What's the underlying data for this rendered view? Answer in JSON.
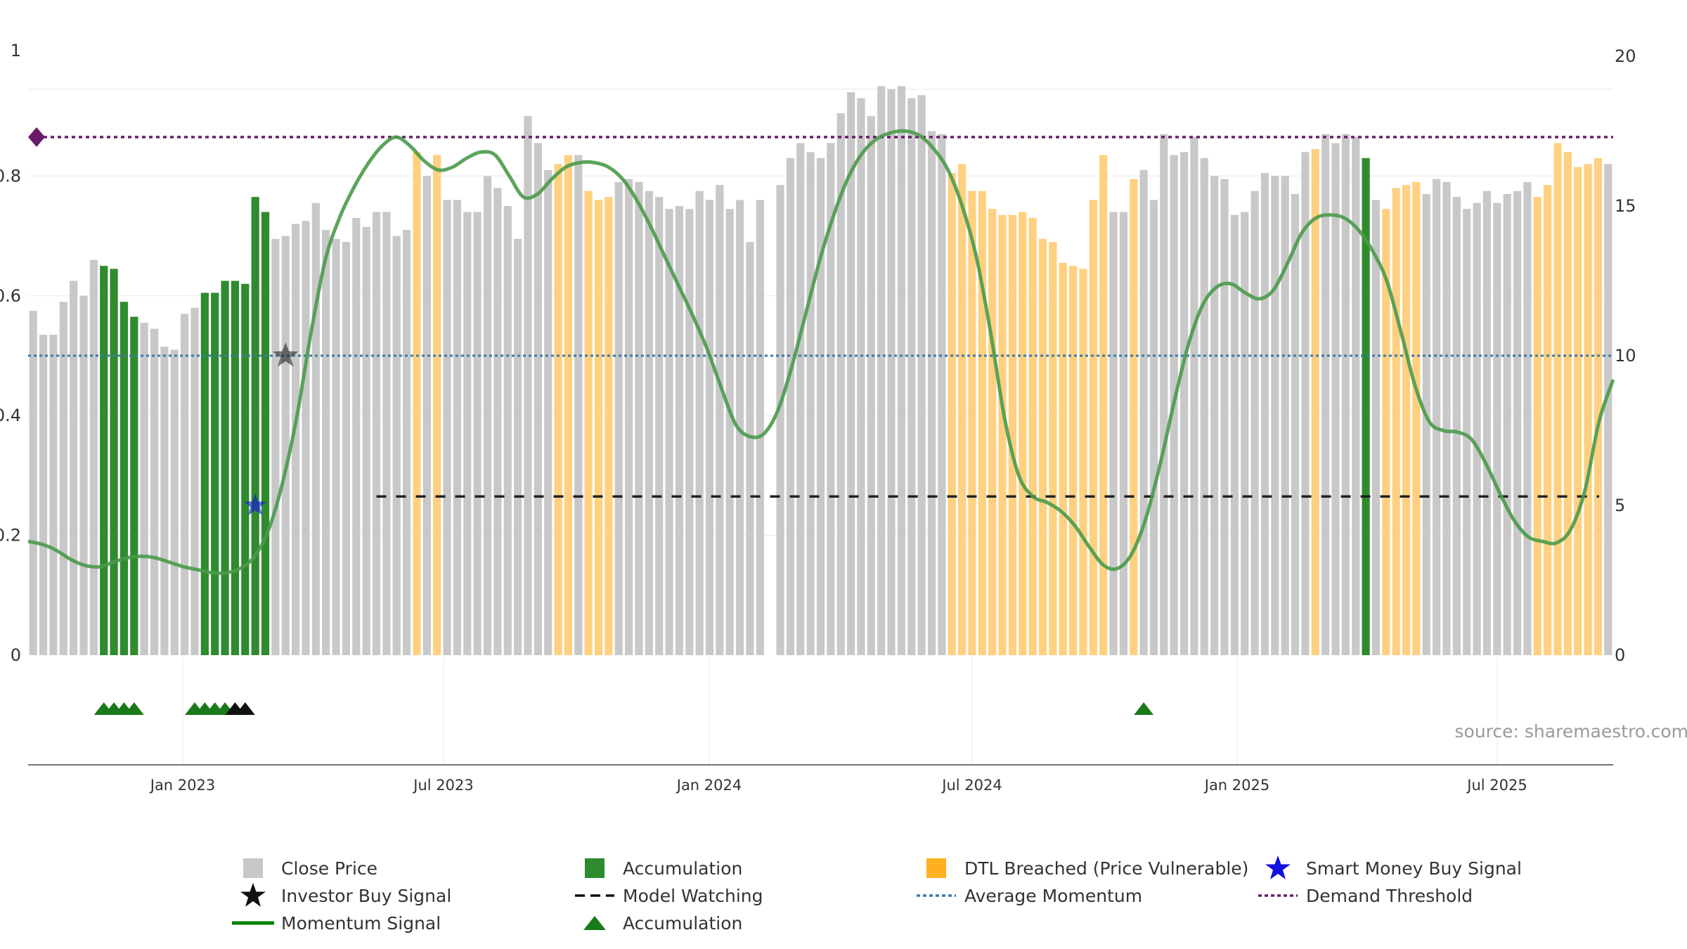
{
  "chart_data": {
    "type": "bar",
    "source": "source: sharemaestro.com",
    "y_left": {
      "range": [
        0,
        1
      ],
      "ticks": [
        "0",
        "0.2",
        "0.4",
        "0.6",
        "0.8",
        "1"
      ]
    },
    "y_right": {
      "range": [
        0,
        20
      ],
      "ticks": [
        "0",
        "5",
        "10",
        "15",
        "20"
      ]
    },
    "x_ticks": [
      "Jan 2023",
      "Jul 2023",
      "Jan 2024",
      "Jul 2024",
      "Jan 2025",
      "Jul 2025"
    ],
    "colors": {
      "close": "#c8c8c8",
      "accumulation": "#2e8b2e",
      "dtl": "#ffd080",
      "momentum": "#4a9a4a",
      "momentum_legend": "#008000",
      "average_momentum": "#3a7aa8",
      "demand_threshold": "#6a1a6a",
      "model_watching": "#222222",
      "smart_money": "#1010e0",
      "investor": "#111111",
      "triangle": "#1a7a1a"
    },
    "bar_states": "CCCCCCCAAAACCCCCCAAAAAAACCCCCCCCCCCCCCDCDCCCCCCCCCCCDDCDDDCCCCCCCCCCCCCCCCCCCCCCCCCCCCCCCCCDDDDDDDDDDDDDDDDCCDCCCCCCCCCCCCCCCCCDCCCCACDDDDCCCCCCCCCCCDDDDDDDCCCCCCCCCCCCCCCCCCCCDDDD",
    "bar_values": [
      0.575,
      0.535,
      0.535,
      0.59,
      0.625,
      0.6,
      0.66,
      0.65,
      0.645,
      0.59,
      0.565,
      0.555,
      0.545,
      0.515,
      0.51,
      0.57,
      0.58,
      0.605,
      0.605,
      0.625,
      0.625,
      0.62,
      0.765,
      0.74,
      0.695,
      0.7,
      0.72,
      0.725,
      0.755,
      0.71,
      0.695,
      0.69,
      0.73,
      0.715,
      0.74,
      0.74,
      0.7,
      0.71,
      0.84,
      0.8,
      0.835,
      0.76,
      0.76,
      0.74,
      0.74,
      0.8,
      0.78,
      0.75,
      0.695,
      0.9,
      0.855,
      0.81,
      0.82,
      0.835,
      0.835,
      0.775,
      0.76,
      0.765,
      0.79,
      0.795,
      0.79,
      0.775,
      0.765,
      0.745,
      0.75,
      0.745,
      0.775,
      0.76,
      0.785,
      0.745,
      0.76,
      0.69,
      0.76,
      null,
      0.785,
      0.83,
      0.855,
      0.84,
      0.83,
      0.855,
      0.905,
      0.94,
      0.93,
      0.9,
      0.95,
      0.945,
      0.95,
      0.93,
      0.935,
      0.875,
      0.87,
      0.805,
      0.82,
      0.775,
      0.775,
      0.745,
      0.735,
      0.735,
      0.74,
      0.73,
      0.695,
      0.69,
      0.655,
      0.65,
      0.645,
      0.76,
      0.835,
      0.74,
      0.74,
      0.795,
      0.81,
      0.76,
      0.87,
      0.835,
      0.84,
      0.865,
      0.83,
      0.8,
      0.795,
      0.735,
      0.74,
      0.775,
      0.805,
      0.8,
      0.8,
      0.77,
      0.84,
      0.845,
      0.87,
      0.855,
      0.87,
      0.865,
      0.83,
      0.76,
      0.745,
      0.78,
      0.785,
      0.79,
      0.77,
      0.795,
      0.79,
      0.765,
      0.745,
      0.755,
      0.775,
      0.755,
      0.77,
      0.775,
      0.79,
      0.765,
      0.785,
      0.855,
      0.84,
      0.815,
      0.82,
      0.83,
      0.82
    ],
    "momentum": [
      [
        0,
        3.8
      ],
      [
        2,
        3.7
      ],
      [
        4,
        3.5
      ],
      [
        6,
        3.2
      ],
      [
        8,
        3.0
      ],
      [
        10,
        2.95
      ],
      [
        12,
        3.1
      ],
      [
        14,
        3.25
      ],
      [
        16,
        3.3
      ],
      [
        18,
        3.25
      ],
      [
        20,
        3.1
      ],
      [
        22,
        2.95
      ],
      [
        24,
        2.85
      ],
      [
        26,
        2.75
      ],
      [
        28,
        2.75
      ],
      [
        30,
        2.9
      ],
      [
        32,
        3.3
      ],
      [
        34,
        4.2
      ],
      [
        36,
        5.8
      ],
      [
        38,
        8.0
      ],
      [
        40,
        10.8
      ],
      [
        42,
        13.2
      ],
      [
        44,
        14.6
      ],
      [
        46,
        15.6
      ],
      [
        48,
        16.4
      ],
      [
        50,
        17.0
      ],
      [
        52,
        17.3
      ],
      [
        54,
        17.0
      ],
      [
        56,
        16.5
      ],
      [
        58,
        16.2
      ],
      [
        60,
        16.3
      ],
      [
        62,
        16.6
      ],
      [
        64,
        16.8
      ],
      [
        66,
        16.7
      ],
      [
        68,
        16.0
      ],
      [
        70,
        15.3
      ],
      [
        72,
        15.4
      ],
      [
        74,
        15.9
      ],
      [
        76,
        16.3
      ],
      [
        78,
        16.45
      ],
      [
        80,
        16.45
      ],
      [
        82,
        16.3
      ],
      [
        84,
        15.9
      ],
      [
        86,
        15.2
      ],
      [
        88,
        14.3
      ],
      [
        90,
        13.3
      ],
      [
        92,
        12.3
      ],
      [
        94,
        11.3
      ],
      [
        96,
        10.2
      ],
      [
        98,
        8.9
      ],
      [
        100,
        7.7
      ],
      [
        102,
        7.3
      ],
      [
        104,
        7.4
      ],
      [
        106,
        8.2
      ],
      [
        108,
        9.7
      ],
      [
        110,
        11.5
      ],
      [
        112,
        13.3
      ],
      [
        114,
        14.8
      ],
      [
        116,
        16.0
      ],
      [
        118,
        16.8
      ],
      [
        120,
        17.25
      ],
      [
        122,
        17.45
      ],
      [
        124,
        17.5
      ],
      [
        126,
        17.35
      ],
      [
        128,
        16.9
      ],
      [
        130,
        16.2
      ],
      [
        132,
        15.0
      ],
      [
        134,
        13.3
      ],
      [
        136,
        10.8
      ],
      [
        138,
        7.9
      ],
      [
        140,
        6.0
      ],
      [
        142,
        5.3
      ],
      [
        144,
        5.1
      ],
      [
        146,
        4.8
      ],
      [
        148,
        4.3
      ],
      [
        150,
        3.6
      ],
      [
        152,
        3.0
      ],
      [
        154,
        2.9
      ],
      [
        156,
        3.4
      ],
      [
        158,
        4.6
      ],
      [
        160,
        6.4
      ],
      [
        162,
        8.5
      ],
      [
        164,
        10.4
      ],
      [
        166,
        11.7
      ],
      [
        168,
        12.3
      ],
      [
        170,
        12.4
      ],
      [
        172,
        12.1
      ],
      [
        174,
        11.9
      ],
      [
        176,
        12.2
      ],
      [
        178,
        13.1
      ],
      [
        180,
        14.1
      ],
      [
        182,
        14.6
      ],
      [
        184,
        14.7
      ],
      [
        186,
        14.6
      ],
      [
        188,
        14.2
      ],
      [
        190,
        13.5
      ],
      [
        192,
        12.5
      ],
      [
        194,
        10.8
      ],
      [
        196,
        9.0
      ],
      [
        198,
        7.8
      ],
      [
        200,
        7.5
      ],
      [
        202,
        7.45
      ],
      [
        204,
        7.2
      ],
      [
        206,
        6.4
      ],
      [
        208,
        5.4
      ],
      [
        210,
        4.5
      ],
      [
        212,
        3.95
      ],
      [
        214,
        3.8
      ],
      [
        216,
        3.75
      ],
      [
        218,
        4.2
      ],
      [
        220,
        5.5
      ],
      [
        222,
        7.8
      ],
      [
        224,
        9.2
      ]
    ],
    "average_momentum": 10,
    "demand_threshold": 17.3,
    "model_watching": 5.3,
    "smart_money_signals": [
      [
        22,
        0.25
      ]
    ],
    "investor_buy_signals": [
      [
        25,
        0.5
      ]
    ],
    "accumulation_triangles": [
      7,
      8,
      9,
      10,
      16,
      17,
      18,
      19,
      110
    ],
    "investor_triangles": [
      20,
      21
    ],
    "legend": {
      "close": "Close Price",
      "accumulation": "Accumulation",
      "dtl": "DTL Breached (Price Vulnerable)",
      "smart_money": "Smart Money Buy Signal",
      "investor": "Investor Buy Signal",
      "model_watching": "Model Watching",
      "average_momentum": "Average Momentum",
      "demand_threshold": "Demand Threshold",
      "momentum": "Momentum Signal",
      "accumulation_marker": "Accumulation"
    }
  }
}
